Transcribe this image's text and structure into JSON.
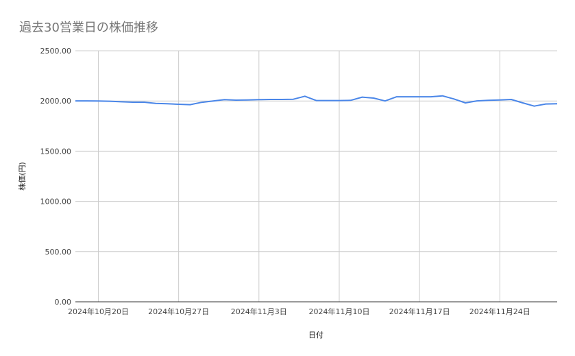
{
  "chart_data": {
    "type": "line",
    "title": "過去30営業日の株価推移",
    "xlabel": "日付",
    "ylabel": "株価(円)",
    "ylim": [
      0,
      2500
    ],
    "yticks": [
      "0.00",
      "500.00",
      "1000.00",
      "1500.00",
      "2000.00",
      "2500.00"
    ],
    "xticks": [
      {
        "date": "2024-10-20",
        "label": "2024年10月20日"
      },
      {
        "date": "2024-10-27",
        "label": "2024年10月27日"
      },
      {
        "date": "2024-11-03",
        "label": "2024年11月3日"
      },
      {
        "date": "2024-11-10",
        "label": "2024年11月10日"
      },
      {
        "date": "2024-11-17",
        "label": "2024年11月17日"
      },
      {
        "date": "2024-11-24",
        "label": "2024年11月24日"
      }
    ],
    "xlim": [
      "2024-10-18",
      "2024-11-29"
    ],
    "grid": true,
    "color": "#4a86e8",
    "series": [
      {
        "x": [
          "2024-10-18",
          "2024-10-19",
          "2024-10-20",
          "2024-10-21",
          "2024-10-22",
          "2024-10-23",
          "2024-10-24",
          "2024-10-25",
          "2024-10-26",
          "2024-10-27",
          "2024-10-28",
          "2024-10-29",
          "2024-10-30",
          "2024-10-31",
          "2024-11-01",
          "2024-11-02",
          "2024-11-03",
          "2024-11-04",
          "2024-11-05",
          "2024-11-06",
          "2024-11-07",
          "2024-11-08",
          "2024-11-09",
          "2024-11-10",
          "2024-11-11",
          "2024-11-12",
          "2024-11-13",
          "2024-11-14",
          "2024-11-15",
          "2024-11-16",
          "2024-11-17",
          "2024-11-18",
          "2024-11-19",
          "2024-11-20",
          "2024-11-21",
          "2024-11-22",
          "2024-11-23",
          "2024-11-24",
          "2024-11-25",
          "2024-11-26",
          "2024-11-27",
          "2024-11-28",
          "2024-11-29"
        ],
        "values": [
          2001,
          2001,
          2000,
          1997,
          1992,
          1988,
          1988,
          1976,
          1972,
          1967,
          1963,
          1986,
          2000,
          2013,
          2008,
          2010,
          2013,
          2015,
          2015,
          2017,
          2047,
          2004,
          2004,
          2004,
          2006,
          2038,
          2029,
          2000,
          2042,
          2042,
          2042,
          2042,
          2051,
          2020,
          1981,
          2001,
          2006,
          2010,
          2015,
          1981,
          1949,
          1970,
          1972
        ]
      }
    ]
  }
}
